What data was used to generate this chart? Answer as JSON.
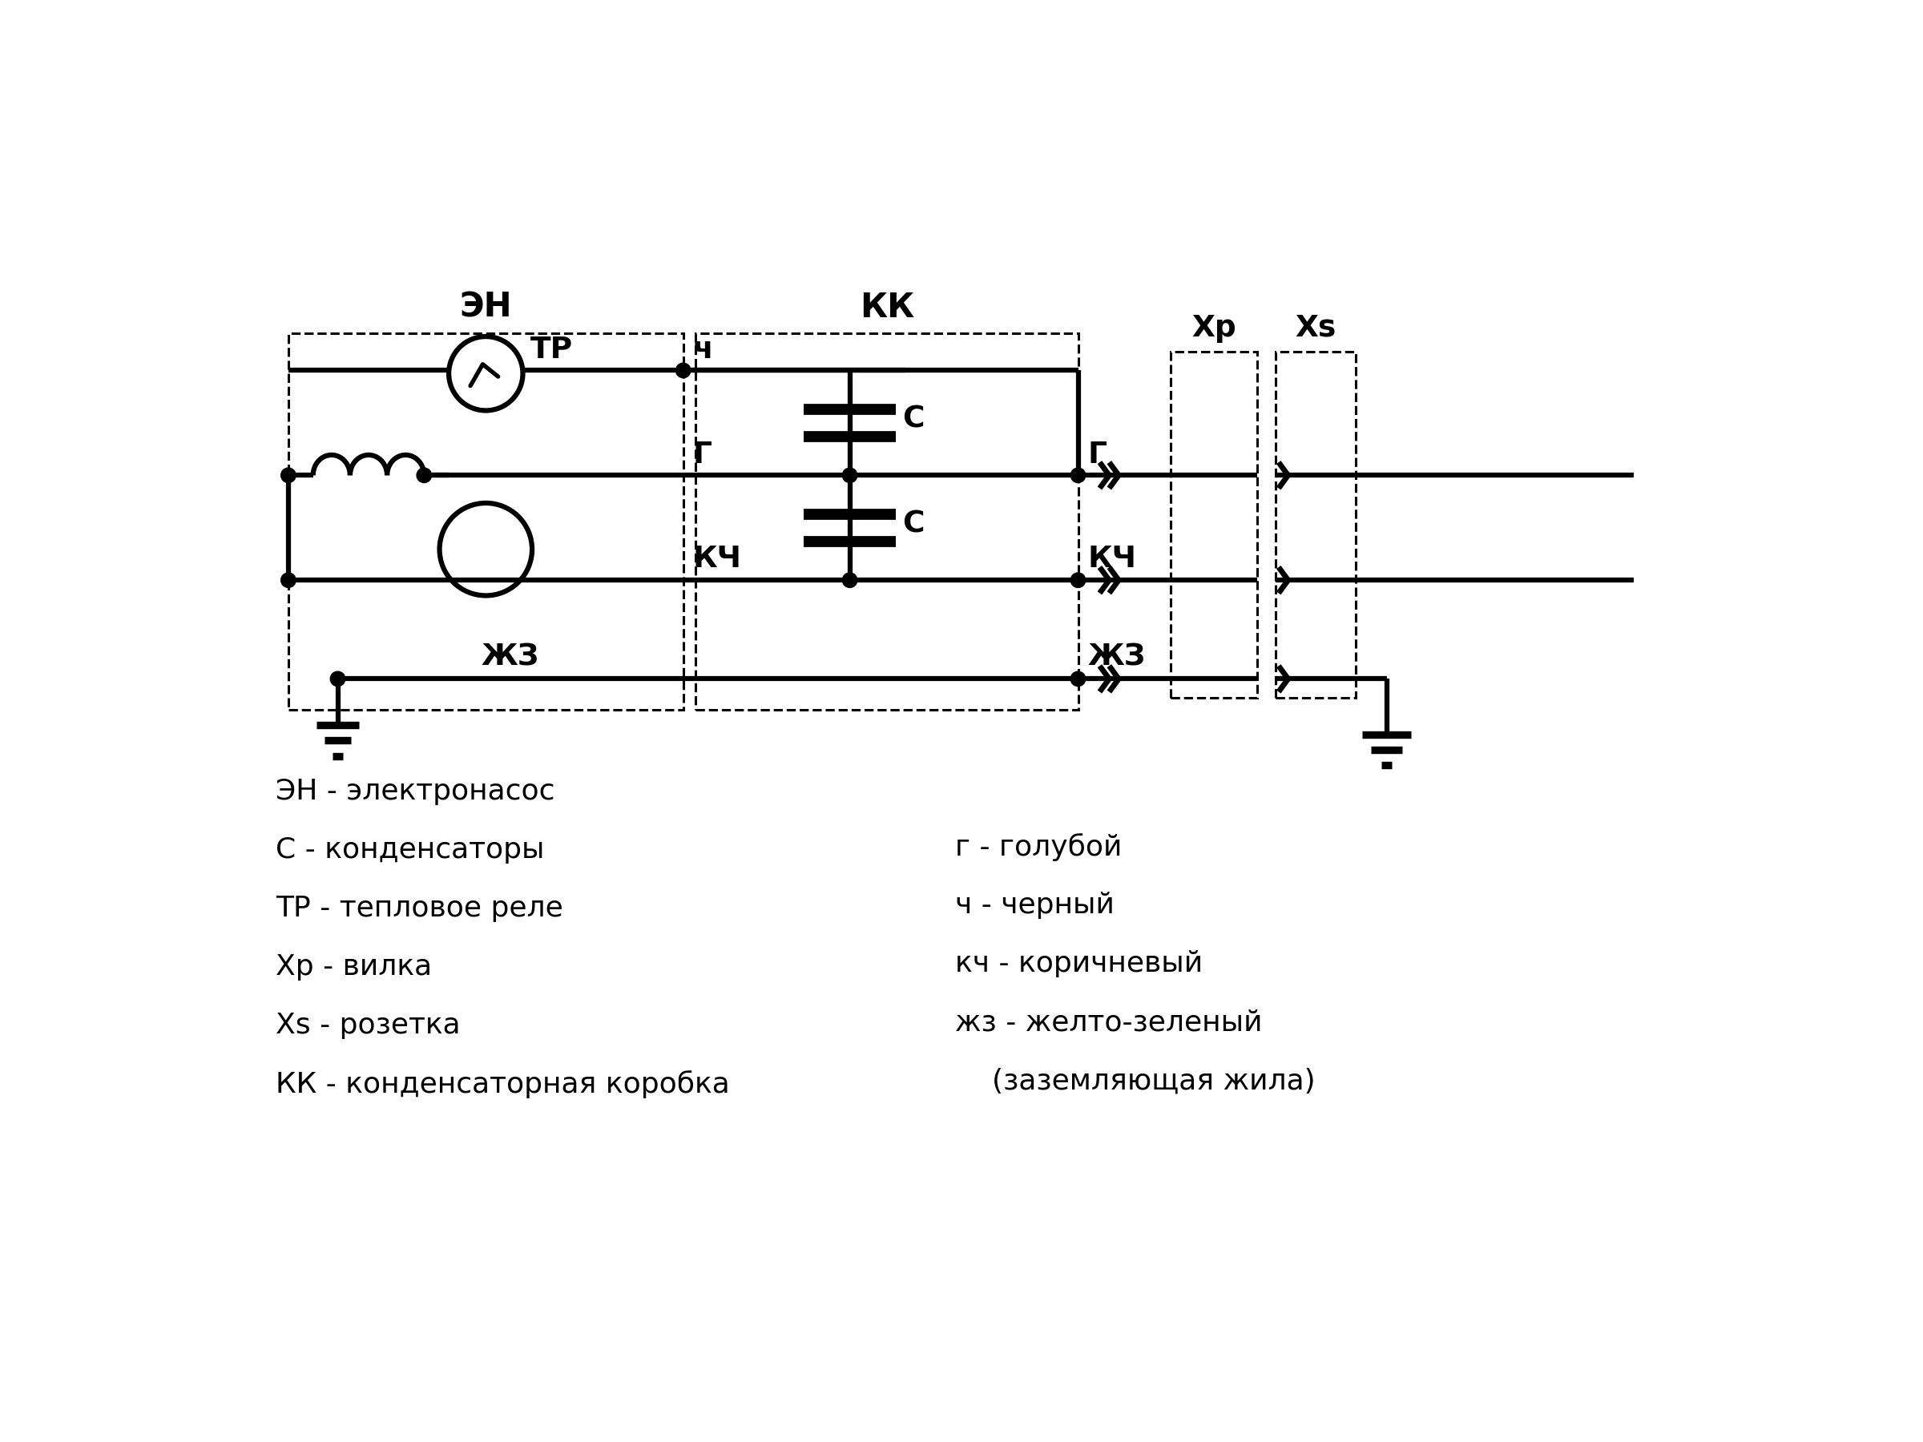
{
  "bg_color": "#ffffff",
  "line_color": "#000000",
  "lw": 4.5,
  "dlw": 2.2,
  "fig_width": 24.0,
  "fig_height": 18.0,
  "legend_left": [
    "ЭН - электронасос",
    "С - конденсаторы",
    "ТР - тепловое реле",
    "Хр - вилка",
    "Xs - розетка",
    "КК - конденсаторная коробка"
  ],
  "legend_right": [
    "г - голубой",
    "ч - черный",
    "кч - коричневый",
    "жз - желто-зеленый",
    "    (заземляющая жила)"
  ]
}
